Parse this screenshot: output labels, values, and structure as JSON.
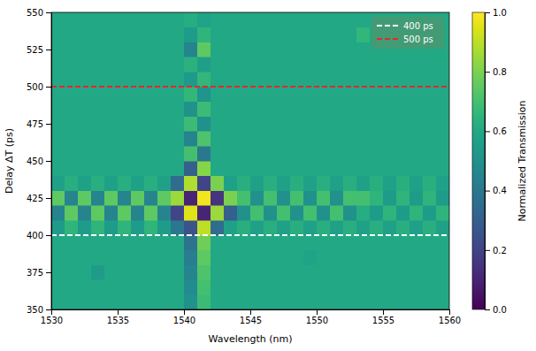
{
  "chart_data": {
    "type": "heatmap",
    "x_label": "Wavelength (nm)",
    "y_label": "Delay ΔT (ps)",
    "xlim": [
      1530,
      1560
    ],
    "ylim": [
      350,
      550
    ],
    "xticks": [
      1530,
      1535,
      1540,
      1545,
      1550,
      1555,
      1560
    ],
    "yticks": [
      350,
      375,
      400,
      425,
      450,
      475,
      500,
      525,
      550
    ],
    "x_bins": [
      1530,
      1531,
      1532,
      1533,
      1534,
      1535,
      1536,
      1537,
      1538,
      1539,
      1540,
      1541,
      1542,
      1543,
      1544,
      1545,
      1546,
      1547,
      1548,
      1549,
      1550,
      1551,
      1552,
      1553,
      1554,
      1555,
      1556,
      1557,
      1558,
      1559,
      1560
    ],
    "y_bins": [
      350,
      360,
      370,
      380,
      390,
      400,
      410,
      420,
      430,
      440,
      450,
      460,
      470,
      480,
      490,
      500,
      510,
      520,
      530,
      540,
      550
    ],
    "z": [
      [
        0.6,
        0.6,
        0.6,
        0.6,
        0.6,
        0.6,
        0.6,
        0.6,
        0.6,
        0.6,
        0.5,
        0.68,
        0.6,
        0.6,
        0.6,
        0.6,
        0.6,
        0.6,
        0.6,
        0.6,
        0.6,
        0.6,
        0.6,
        0.6,
        0.6,
        0.6,
        0.6,
        0.6,
        0.6,
        0.6
      ],
      [
        0.6,
        0.6,
        0.6,
        0.6,
        0.6,
        0.6,
        0.6,
        0.6,
        0.6,
        0.6,
        0.48,
        0.7,
        0.6,
        0.6,
        0.6,
        0.6,
        0.6,
        0.6,
        0.6,
        0.6,
        0.6,
        0.6,
        0.6,
        0.6,
        0.6,
        0.6,
        0.6,
        0.6,
        0.6,
        0.6
      ],
      [
        0.6,
        0.6,
        0.6,
        0.55,
        0.6,
        0.6,
        0.6,
        0.6,
        0.6,
        0.6,
        0.45,
        0.72,
        0.6,
        0.6,
        0.6,
        0.6,
        0.6,
        0.6,
        0.6,
        0.6,
        0.6,
        0.6,
        0.6,
        0.6,
        0.6,
        0.6,
        0.6,
        0.6,
        0.6,
        0.6
      ],
      [
        0.6,
        0.6,
        0.6,
        0.6,
        0.6,
        0.6,
        0.6,
        0.6,
        0.6,
        0.6,
        0.42,
        0.75,
        0.6,
        0.6,
        0.6,
        0.6,
        0.6,
        0.6,
        0.6,
        0.58,
        0.6,
        0.6,
        0.6,
        0.6,
        0.6,
        0.6,
        0.6,
        0.6,
        0.6,
        0.6
      ],
      [
        0.6,
        0.6,
        0.6,
        0.6,
        0.6,
        0.6,
        0.6,
        0.6,
        0.6,
        0.6,
        0.38,
        0.78,
        0.6,
        0.6,
        0.6,
        0.6,
        0.6,
        0.6,
        0.6,
        0.6,
        0.6,
        0.6,
        0.6,
        0.6,
        0.6,
        0.6,
        0.6,
        0.6,
        0.6,
        0.6
      ],
      [
        0.55,
        0.65,
        0.55,
        0.65,
        0.55,
        0.65,
        0.55,
        0.65,
        0.55,
        0.4,
        0.25,
        0.9,
        0.35,
        0.57,
        0.63,
        0.57,
        0.63,
        0.57,
        0.63,
        0.57,
        0.63,
        0.57,
        0.63,
        0.57,
        0.63,
        0.57,
        0.63,
        0.57,
        0.63,
        0.57
      ],
      [
        0.45,
        0.75,
        0.45,
        0.75,
        0.45,
        0.75,
        0.45,
        0.75,
        0.45,
        0.2,
        0.95,
        0.1,
        0.85,
        0.3,
        0.5,
        0.7,
        0.5,
        0.7,
        0.5,
        0.7,
        0.5,
        0.7,
        0.5,
        0.62,
        0.55,
        0.65,
        0.55,
        0.65,
        0.55,
        0.65
      ],
      [
        0.75,
        0.45,
        0.75,
        0.45,
        0.75,
        0.45,
        0.75,
        0.45,
        0.75,
        0.85,
        0.1,
        0.98,
        0.15,
        0.8,
        0.7,
        0.5,
        0.7,
        0.5,
        0.7,
        0.5,
        0.7,
        0.5,
        0.7,
        0.7,
        0.65,
        0.55,
        0.65,
        0.55,
        0.65,
        0.55
      ],
      [
        0.57,
        0.63,
        0.57,
        0.63,
        0.57,
        0.63,
        0.57,
        0.63,
        0.57,
        0.35,
        0.88,
        0.2,
        0.8,
        0.57,
        0.63,
        0.57,
        0.63,
        0.57,
        0.63,
        0.57,
        0.63,
        0.57,
        0.63,
        0.57,
        0.63,
        0.57,
        0.63,
        0.57,
        0.63,
        0.57
      ],
      [
        0.6,
        0.6,
        0.6,
        0.6,
        0.6,
        0.6,
        0.6,
        0.6,
        0.6,
        0.6,
        0.3,
        0.82,
        0.6,
        0.6,
        0.6,
        0.6,
        0.6,
        0.6,
        0.6,
        0.6,
        0.6,
        0.6,
        0.6,
        0.6,
        0.6,
        0.6,
        0.6,
        0.6,
        0.6,
        0.6
      ],
      [
        0.6,
        0.6,
        0.6,
        0.6,
        0.6,
        0.6,
        0.6,
        0.6,
        0.6,
        0.6,
        0.7,
        0.4,
        0.6,
        0.6,
        0.6,
        0.6,
        0.6,
        0.6,
        0.6,
        0.6,
        0.6,
        0.6,
        0.6,
        0.6,
        0.6,
        0.6,
        0.6,
        0.6,
        0.6,
        0.6
      ],
      [
        0.6,
        0.6,
        0.6,
        0.6,
        0.6,
        0.6,
        0.6,
        0.6,
        0.6,
        0.6,
        0.45,
        0.72,
        0.6,
        0.6,
        0.6,
        0.6,
        0.6,
        0.6,
        0.6,
        0.6,
        0.6,
        0.6,
        0.6,
        0.6,
        0.6,
        0.6,
        0.6,
        0.6,
        0.6,
        0.6
      ],
      [
        0.6,
        0.6,
        0.6,
        0.6,
        0.6,
        0.6,
        0.6,
        0.6,
        0.6,
        0.6,
        0.68,
        0.5,
        0.6,
        0.6,
        0.6,
        0.6,
        0.6,
        0.6,
        0.6,
        0.6,
        0.6,
        0.6,
        0.6,
        0.6,
        0.6,
        0.6,
        0.6,
        0.6,
        0.6,
        0.6
      ],
      [
        0.6,
        0.6,
        0.6,
        0.6,
        0.6,
        0.6,
        0.6,
        0.6,
        0.6,
        0.6,
        0.5,
        0.68,
        0.6,
        0.6,
        0.6,
        0.6,
        0.6,
        0.6,
        0.6,
        0.6,
        0.6,
        0.6,
        0.6,
        0.6,
        0.6,
        0.6,
        0.6,
        0.6,
        0.6,
        0.6
      ],
      [
        0.6,
        0.6,
        0.6,
        0.6,
        0.6,
        0.6,
        0.6,
        0.6,
        0.6,
        0.6,
        0.66,
        0.52,
        0.6,
        0.6,
        0.6,
        0.6,
        0.6,
        0.6,
        0.6,
        0.6,
        0.6,
        0.6,
        0.6,
        0.6,
        0.6,
        0.6,
        0.6,
        0.6,
        0.6,
        0.6
      ],
      [
        0.6,
        0.6,
        0.6,
        0.6,
        0.6,
        0.6,
        0.6,
        0.6,
        0.6,
        0.6,
        0.54,
        0.66,
        0.6,
        0.6,
        0.6,
        0.6,
        0.6,
        0.6,
        0.6,
        0.6,
        0.6,
        0.6,
        0.6,
        0.6,
        0.6,
        0.6,
        0.6,
        0.6,
        0.6,
        0.6
      ],
      [
        0.6,
        0.6,
        0.6,
        0.6,
        0.6,
        0.6,
        0.6,
        0.6,
        0.6,
        0.6,
        0.64,
        0.56,
        0.6,
        0.6,
        0.6,
        0.6,
        0.6,
        0.6,
        0.6,
        0.6,
        0.6,
        0.6,
        0.6,
        0.6,
        0.6,
        0.6,
        0.6,
        0.6,
        0.6,
        0.6
      ],
      [
        0.6,
        0.6,
        0.6,
        0.6,
        0.6,
        0.6,
        0.6,
        0.6,
        0.6,
        0.6,
        0.45,
        0.75,
        0.6,
        0.6,
        0.6,
        0.6,
        0.6,
        0.6,
        0.6,
        0.6,
        0.6,
        0.6,
        0.6,
        0.6,
        0.6,
        0.6,
        0.6,
        0.6,
        0.6,
        0.6
      ],
      [
        0.6,
        0.6,
        0.6,
        0.6,
        0.6,
        0.6,
        0.6,
        0.6,
        0.6,
        0.6,
        0.55,
        0.65,
        0.6,
        0.6,
        0.6,
        0.6,
        0.6,
        0.6,
        0.6,
        0.6,
        0.6,
        0.6,
        0.6,
        0.66,
        0.6,
        0.6,
        0.6,
        0.6,
        0.6,
        0.6
      ],
      [
        0.6,
        0.6,
        0.6,
        0.6,
        0.6,
        0.6,
        0.6,
        0.6,
        0.6,
        0.6,
        0.62,
        0.58,
        0.6,
        0.6,
        0.6,
        0.6,
        0.6,
        0.6,
        0.6,
        0.6,
        0.6,
        0.6,
        0.6,
        0.6,
        0.6,
        0.6,
        0.6,
        0.6,
        0.6,
        0.6
      ]
    ],
    "colorbar": {
      "label": "Normalized Transmission",
      "range": [
        0,
        1
      ],
      "ticks": [
        {
          "value": 0,
          "label": "0.0"
        },
        {
          "value": 0.2,
          "label": "0.2"
        },
        {
          "value": 0.4,
          "label": "0.4"
        },
        {
          "value": 0.6,
          "label": "0.6"
        },
        {
          "value": 0.8,
          "label": "0.8"
        },
        {
          "value": 1,
          "label": "1.0"
        }
      ]
    },
    "lines": [
      {
        "name": "400 ps",
        "y": 400,
        "color": "#ffffff",
        "line_style": "dashed"
      },
      {
        "name": "500 ps",
        "y": 500,
        "color": "#e8262a",
        "line_style": "dashed"
      }
    ],
    "legend": "upper right"
  }
}
